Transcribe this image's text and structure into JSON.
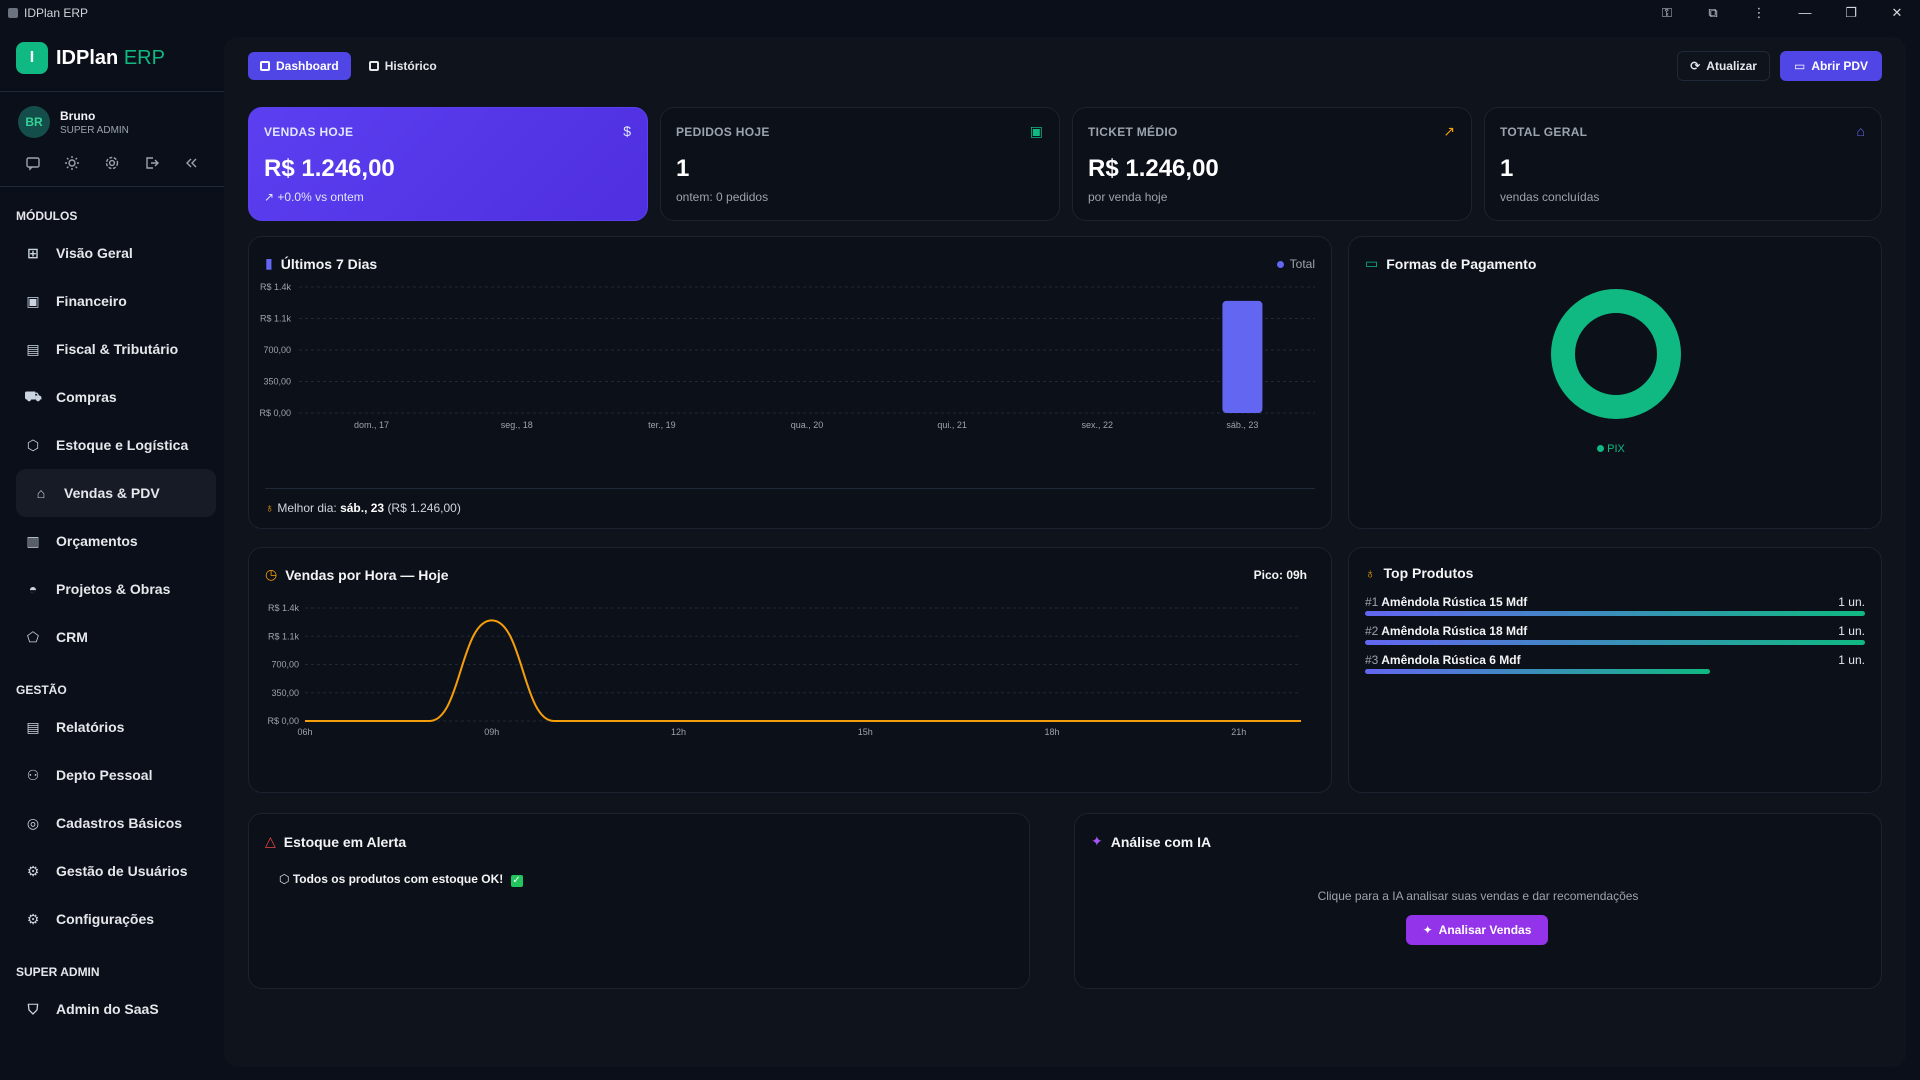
{
  "window": {
    "title": "IDPlan ERP"
  },
  "brand": {
    "name": "IDPlan",
    "suffix": "ERP",
    "logo_letter": "I"
  },
  "user": {
    "initials": "BR",
    "name": "Bruno",
    "role": "SUPER ADMIN"
  },
  "sidebar": {
    "sections": [
      {
        "title": "MÓDULOS",
        "items": [
          {
            "label": "Visão Geral",
            "icon": "grid-icon"
          },
          {
            "label": "Financeiro",
            "icon": "wallet-icon"
          },
          {
            "label": "Fiscal & Tributário",
            "icon": "document-icon"
          },
          {
            "label": "Compras",
            "icon": "cart-icon"
          },
          {
            "label": "Estoque e Logística",
            "icon": "box-icon"
          },
          {
            "label": "Vendas & PDV",
            "icon": "store-icon",
            "active": true
          },
          {
            "label": "Orçamentos",
            "icon": "clipboard-icon"
          },
          {
            "label": "Projetos & Obras",
            "icon": "helmet-icon"
          },
          {
            "label": "CRM",
            "icon": "handshake-icon"
          }
        ]
      },
      {
        "title": "GESTÃO",
        "items": [
          {
            "label": "Relatórios",
            "icon": "report-icon"
          },
          {
            "label": "Depto Pessoal",
            "icon": "users-icon"
          },
          {
            "label": "Cadastros Básicos",
            "icon": "database-icon"
          },
          {
            "label": "Gestão de Usuários",
            "icon": "gear-icon"
          },
          {
            "label": "Configurações",
            "icon": "settings-icon"
          }
        ]
      },
      {
        "title": "SUPER ADMIN",
        "items": [
          {
            "label": "Admin do SaaS",
            "icon": "shield-icon"
          }
        ]
      }
    ]
  },
  "tabs": {
    "dashboard": "Dashboard",
    "historico": "Histórico"
  },
  "actions": {
    "refresh": "Atualizar",
    "open_pdv": "Abrir PDV"
  },
  "kpis": {
    "sales_today": {
      "label": "VENDAS HOJE",
      "value": "R$ 1.246,00",
      "sub": "+0.0% vs ontem"
    },
    "orders_today": {
      "label": "PEDIDOS HOJE",
      "value": "1",
      "sub": "ontem: 0 pedidos"
    },
    "avg_ticket": {
      "label": "TICKET MÉDIO",
      "value": "R$ 1.246,00",
      "sub": "por venda hoje"
    },
    "total": {
      "label": "TOTAL GERAL",
      "value": "1",
      "sub": "vendas concluídas"
    }
  },
  "last7": {
    "title": "Últimos 7 Dias",
    "legend": "Total",
    "best_prefix": "Melhor dia:",
    "best_day": "sáb., 23",
    "best_value": "(R$ 1.246,00)"
  },
  "payments": {
    "title": "Formas de Pagamento",
    "legend": "PIX"
  },
  "hourly": {
    "title": "Vendas por Hora — Hoje",
    "peak": "Pico: 09h"
  },
  "top_products": {
    "title": "Top Produtos",
    "items": [
      {
        "rank": "#1",
        "name": "Amêndola Rústica 15 Mdf",
        "qty": "1 un.",
        "share": 1.0
      },
      {
        "rank": "#2",
        "name": "Amêndola Rústica 18 Mdf",
        "qty": "1 un.",
        "share": 1.0
      },
      {
        "rank": "#3",
        "name": "Amêndola Rústica 6 Mdf",
        "qty": "1 un.",
        "share": 0.69
      }
    ]
  },
  "stock_alert": {
    "title": "Estoque em Alerta",
    "message": "Todos os produtos com estoque OK!"
  },
  "ai": {
    "title": "Análise com IA",
    "hint": "Clique para a IA analisar suas vendas e dar recomendações",
    "button": "Analisar Vendas"
  },
  "colors": {
    "accent": "#4f46e5",
    "brand": "#10b981",
    "bar": "#6366f1",
    "line": "#f59e0b",
    "ai": "#9333ea"
  },
  "chart_data": [
    {
      "type": "bar",
      "title": "Últimos 7 Dias",
      "categories": [
        "dom., 17",
        "seg., 18",
        "ter., 19",
        "qua., 20",
        "qui., 21",
        "sex., 22",
        "sáb., 23"
      ],
      "series": [
        {
          "name": "Total",
          "values": [
            0,
            0,
            0,
            0,
            0,
            0,
            1246
          ]
        }
      ],
      "yticks": [
        "R$ 0,00",
        "350,00",
        "700,00",
        "R$ 1.1k",
        "R$ 1.4k"
      ],
      "ytick_values": [
        0,
        350,
        700,
        1050,
        1400
      ],
      "ylim": [
        0,
        1400
      ]
    },
    {
      "type": "pie",
      "title": "Formas de Pagamento",
      "categories": [
        "PIX"
      ],
      "values": [
        1246
      ]
    },
    {
      "type": "line",
      "title": "Vendas por Hora — Hoje",
      "x": [
        "06h",
        "07h",
        "08h",
        "09h",
        "10h",
        "11h",
        "12h",
        "13h",
        "14h",
        "15h",
        "16h",
        "17h",
        "18h",
        "19h",
        "20h",
        "21h",
        "22h"
      ],
      "series": [
        {
          "values": [
            0,
            0,
            0,
            1246,
            0,
            0,
            0,
            0,
            0,
            0,
            0,
            0,
            0,
            0,
            0,
            0,
            0
          ]
        }
      ],
      "xticks": [
        "06h",
        "09h",
        "12h",
        "15h",
        "18h",
        "21h"
      ],
      "yticks": [
        "R$ 0,00",
        "350,00",
        "700,00",
        "R$ 1.1k",
        "R$ 1.4k"
      ],
      "ytick_values": [
        0,
        350,
        700,
        1050,
        1400
      ],
      "ylim": [
        0,
        1400
      ]
    }
  ]
}
